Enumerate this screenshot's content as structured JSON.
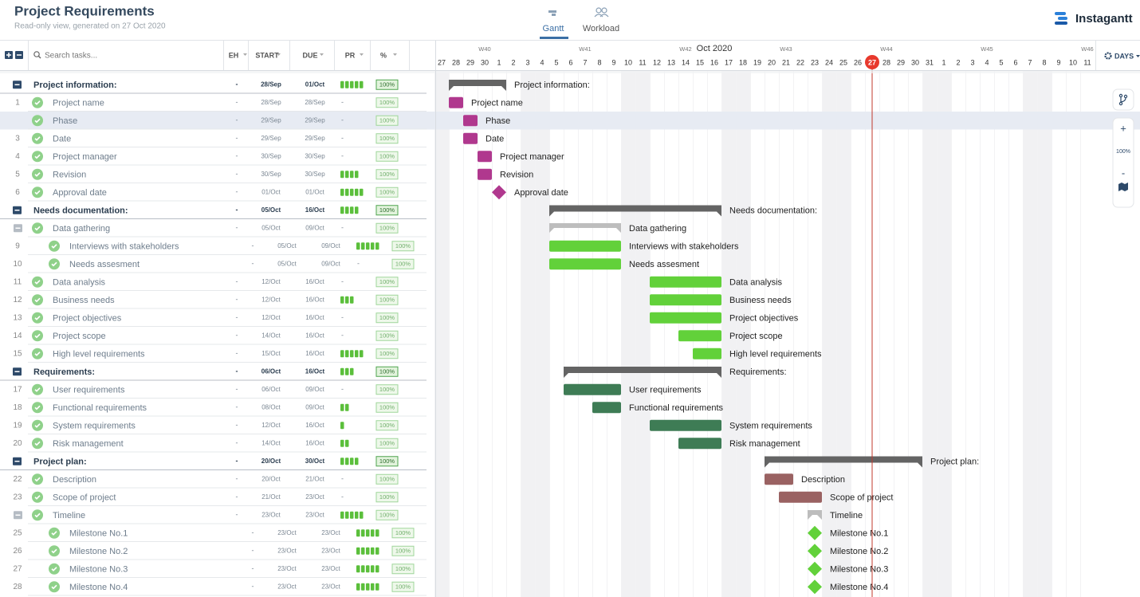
{
  "header": {
    "title": "Project Requirements",
    "subtitle": "Read-only view, generated on 27 Oct 2020",
    "tabs": [
      "Gantt",
      "Workload"
    ],
    "logo": "Instagantt"
  },
  "columns": {
    "search": "Search tasks...",
    "headers": [
      "EH",
      "START",
      "DUE",
      "PR",
      "%"
    ]
  },
  "timeline": {
    "month": "Oct 2020",
    "weeks": [
      "W40",
      "W41",
      "W42",
      "W43",
      "W44",
      "W45",
      "W46"
    ],
    "days": [
      27,
      28,
      29,
      30,
      1,
      2,
      3,
      4,
      5,
      6,
      7,
      8,
      9,
      10,
      11,
      12,
      13,
      14,
      15,
      16,
      17,
      18,
      19,
      20,
      21,
      22,
      23,
      24,
      25,
      26,
      27,
      28,
      29,
      30,
      31,
      1,
      2,
      3,
      4,
      5,
      6,
      7,
      8,
      9,
      10,
      11
    ],
    "today": "27/Oct",
    "scale": "DAYS"
  },
  "toolbar": {
    "zoom_in": "+",
    "zoom": "100%",
    "zoom_out": "-"
  },
  "rows": [
    {
      "num": null,
      "name": "Project information:",
      "kind": "group",
      "level": 0,
      "eh": "-",
      "start": "28/Sep",
      "due": "01/Oct",
      "pr": 5,
      "pct": "100%",
      "color": "#646464"
    },
    {
      "num": "1",
      "name": "Project name",
      "kind": "task",
      "level": 1,
      "eh": "-",
      "start": "28/Sep",
      "due": "28/Sep",
      "pr": "-",
      "pct": "100%",
      "color": "#b0388e"
    },
    {
      "num": null,
      "name": "Phase",
      "kind": "task",
      "level": 1,
      "eh": "-",
      "start": "29/Sep",
      "due": "29/Sep",
      "pr": "-",
      "pct": "100%",
      "color": "#b0388e",
      "selected": true
    },
    {
      "num": "3",
      "name": "Date",
      "kind": "task",
      "level": 1,
      "eh": "-",
      "start": "29/Sep",
      "due": "29/Sep",
      "pr": "-",
      "pct": "100%",
      "color": "#b0388e"
    },
    {
      "num": "4",
      "name": "Project manager",
      "kind": "task",
      "level": 1,
      "eh": "-",
      "start": "30/Sep",
      "due": "30/Sep",
      "pr": "-",
      "pct": "100%",
      "color": "#b0388e"
    },
    {
      "num": "5",
      "name": "Revision",
      "kind": "task",
      "level": 1,
      "eh": "-",
      "start": "30/Sep",
      "due": "30/Sep",
      "pr": 4,
      "pct": "100%",
      "color": "#b0388e"
    },
    {
      "num": "6",
      "name": "Approval date",
      "kind": "milestone",
      "level": 1,
      "eh": "-",
      "start": "01/Oct",
      "due": "01/Oct",
      "pr": 5,
      "pct": "100%",
      "color": "#b0388e"
    },
    {
      "num": null,
      "name": "Needs documentation:",
      "kind": "group",
      "level": 0,
      "eh": "-",
      "start": "05/Oct",
      "due": "16/Oct",
      "pr": 4,
      "pct": "100%",
      "color": "#646464"
    },
    {
      "num": null,
      "name": "Data gathering",
      "kind": "subgroup",
      "level": 1,
      "eh": "-",
      "start": "05/Oct",
      "due": "09/Oct",
      "pr": "-",
      "pct": "100%",
      "color": "#bdbdbd"
    },
    {
      "num": "9",
      "name": "Interviews with stakeholders",
      "kind": "task",
      "level": 2,
      "eh": "-",
      "start": "05/Oct",
      "due": "09/Oct",
      "pr": 5,
      "pct": "100%",
      "color": "#62d13a"
    },
    {
      "num": "10",
      "name": "Needs assesment",
      "kind": "task",
      "level": 2,
      "eh": "-",
      "start": "05/Oct",
      "due": "09/Oct",
      "pr": "-",
      "pct": "100%",
      "color": "#62d13a"
    },
    {
      "num": "11",
      "name": "Data analysis",
      "kind": "task",
      "level": 1,
      "eh": "-",
      "start": "12/Oct",
      "due": "16/Oct",
      "pr": "-",
      "pct": "100%",
      "color": "#62d13a"
    },
    {
      "num": "12",
      "name": "Business needs",
      "kind": "task",
      "level": 1,
      "eh": "-",
      "start": "12/Oct",
      "due": "16/Oct",
      "pr": 3,
      "pct": "100%",
      "color": "#62d13a"
    },
    {
      "num": "13",
      "name": "Project objectives",
      "kind": "task",
      "level": 1,
      "eh": "-",
      "start": "12/Oct",
      "due": "16/Oct",
      "pr": "-",
      "pct": "100%",
      "color": "#62d13a"
    },
    {
      "num": "14",
      "name": "Project scope",
      "kind": "task",
      "level": 1,
      "eh": "-",
      "start": "14/Oct",
      "due": "16/Oct",
      "pr": "-",
      "pct": "100%",
      "color": "#62d13a"
    },
    {
      "num": "15",
      "name": "High level requirements",
      "kind": "task",
      "level": 1,
      "eh": "-",
      "start": "15/Oct",
      "due": "16/Oct",
      "pr": 5,
      "pct": "100%",
      "color": "#62d13a"
    },
    {
      "num": null,
      "name": "Requirements:",
      "kind": "group",
      "level": 0,
      "eh": "-",
      "start": "06/Oct",
      "due": "16/Oct",
      "pr": 3,
      "pct": "100%",
      "color": "#646464"
    },
    {
      "num": "17",
      "name": "User requirements",
      "kind": "task",
      "level": 1,
      "eh": "-",
      "start": "06/Oct",
      "due": "09/Oct",
      "pr": "-",
      "pct": "100%",
      "color": "#3e7c55"
    },
    {
      "num": "18",
      "name": "Functional requirements",
      "kind": "task",
      "level": 1,
      "eh": "-",
      "start": "08/Oct",
      "due": "09/Oct",
      "pr": 2,
      "pct": "100%",
      "color": "#3e7c55"
    },
    {
      "num": "19",
      "name": "System requirements",
      "kind": "task",
      "level": 1,
      "eh": "-",
      "start": "12/Oct",
      "due": "16/Oct",
      "pr": 1,
      "pct": "100%",
      "color": "#3e7c55"
    },
    {
      "num": "20",
      "name": "Risk management",
      "kind": "task",
      "level": 1,
      "eh": "-",
      "start": "14/Oct",
      "due": "16/Oct",
      "pr": 2,
      "pct": "100%",
      "color": "#3e7c55"
    },
    {
      "num": null,
      "name": "Project plan:",
      "kind": "group",
      "level": 0,
      "eh": "-",
      "start": "20/Oct",
      "due": "30/Oct",
      "pr": 4,
      "pct": "100%",
      "color": "#646464"
    },
    {
      "num": "22",
      "name": "Description",
      "kind": "task",
      "level": 1,
      "eh": "-",
      "start": "20/Oct",
      "due": "21/Oct",
      "pr": "-",
      "pct": "100%",
      "color": "#9a6262"
    },
    {
      "num": "23",
      "name": "Scope of project",
      "kind": "task",
      "level": 1,
      "eh": "-",
      "start": "21/Oct",
      "due": "23/Oct",
      "pr": "-",
      "pct": "100%",
      "color": "#9a6262"
    },
    {
      "num": null,
      "name": "Timeline",
      "kind": "subgroup",
      "level": 1,
      "eh": "-",
      "start": "23/Oct",
      "due": "23/Oct",
      "pr": 5,
      "pct": "100%",
      "color": "#bdbdbd"
    },
    {
      "num": "25",
      "name": "Milestone No.1",
      "kind": "milestone",
      "level": 2,
      "eh": "-",
      "start": "23/Oct",
      "due": "23/Oct",
      "pr": 5,
      "pct": "100%",
      "color": "#62d13a"
    },
    {
      "num": "26",
      "name": "Milestone No.2",
      "kind": "milestone",
      "level": 2,
      "eh": "-",
      "start": "23/Oct",
      "due": "23/Oct",
      "pr": 5,
      "pct": "100%",
      "color": "#62d13a"
    },
    {
      "num": "27",
      "name": "Milestone No.3",
      "kind": "milestone",
      "level": 2,
      "eh": "-",
      "start": "23/Oct",
      "due": "23/Oct",
      "pr": 5,
      "pct": "100%",
      "color": "#62d13a"
    },
    {
      "num": "28",
      "name": "Milestone No.4",
      "kind": "milestone",
      "level": 2,
      "eh": "-",
      "start": "23/Oct",
      "due": "23/Oct",
      "pr": 5,
      "pct": "100%",
      "color": "#62d13a"
    }
  ]
}
